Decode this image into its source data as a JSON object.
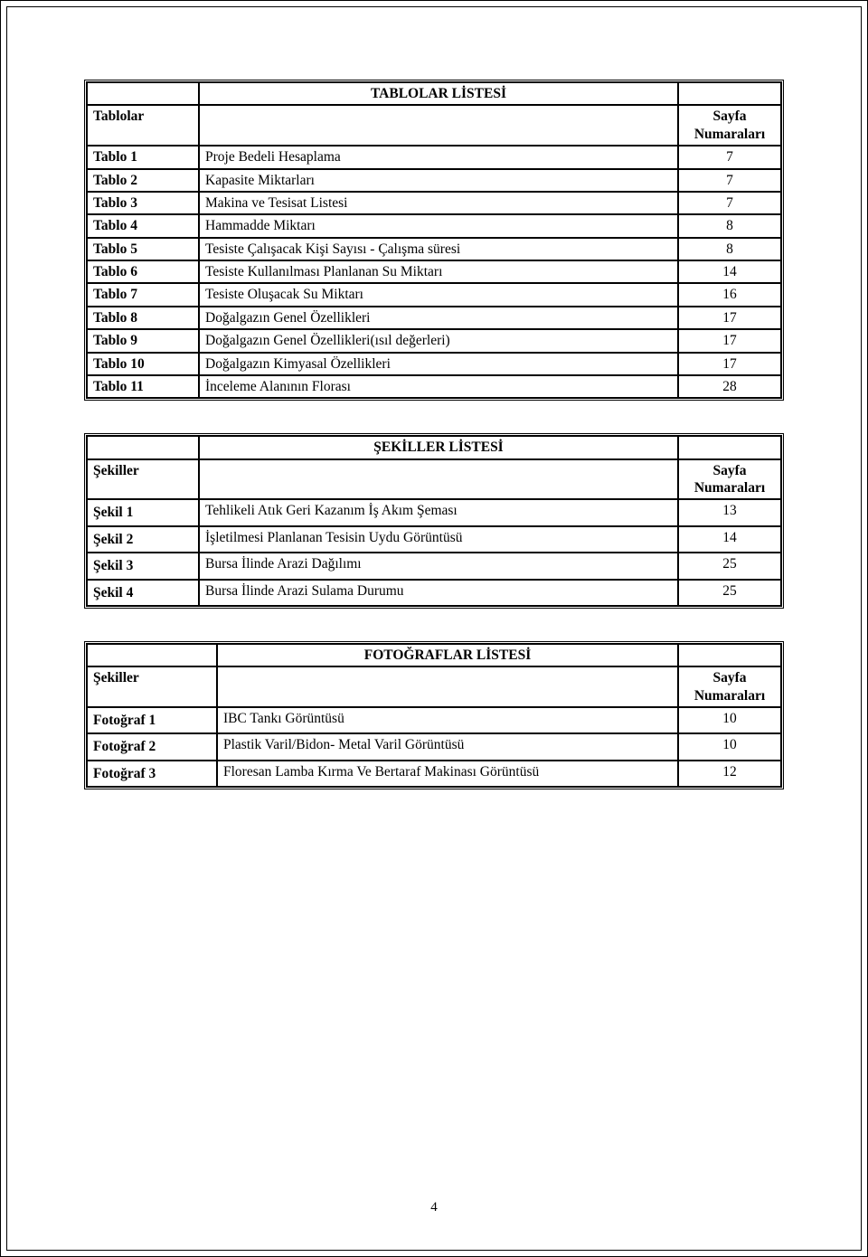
{
  "pageNumber": "4",
  "tables": {
    "tablolar": {
      "title": "TABLOLAR LİSTESİ",
      "headerCol1": "Tablolar",
      "headerCol3": "Sayfa Numaraları",
      "rows": [
        {
          "label": "Tablo 1",
          "desc": "Proje Bedeli Hesaplama",
          "page": "7"
        },
        {
          "label": "Tablo 2",
          "desc": "Kapasite Miktarları",
          "page": "7"
        },
        {
          "label": "Tablo 3",
          "desc": "Makina ve Tesisat Listesi",
          "page": "7"
        },
        {
          "label": "Tablo 4",
          "desc": "Hammadde Miktarı",
          "page": "8"
        },
        {
          "label": "Tablo 5",
          "desc": "Tesiste Çalışacak Kişi Sayısı - Çalışma süresi",
          "page": "8"
        },
        {
          "label": "Tablo 6",
          "desc": "Tesiste Kullanılması Planlanan Su Miktarı",
          "page": "14"
        },
        {
          "label": "Tablo 7",
          "desc": "Tesiste Oluşacak Su Miktarı",
          "page": "16"
        },
        {
          "label": "Tablo 8",
          "desc": "Doğalgazın Genel Özellikleri",
          "page": "17"
        },
        {
          "label": "Tablo 9",
          "desc": "Doğalgazın Genel Özellikleri(ısıl değerleri)",
          "page": "17"
        },
        {
          "label": "Tablo 10",
          "desc": "Doğalgazın Kimyasal Özellikleri",
          "page": "17"
        },
        {
          "label": "Tablo 11",
          "desc": "İnceleme Alanının Florası",
          "page": "28"
        }
      ]
    },
    "sekiller": {
      "title": "ŞEKİLLER LİSTESİ",
      "headerCol1": "Şekiller",
      "headerCol3": "Sayfa Numaraları",
      "rows": [
        {
          "label": "Şekil 1",
          "desc": "Tehlikeli Atık Geri Kazanım İş Akım Şeması",
          "page": "13"
        },
        {
          "label": "Şekil 2",
          "desc": "İşletilmesi Planlanan Tesisin Uydu Görüntüsü",
          "page": "14"
        },
        {
          "label": "Şekil 3",
          "desc": "Bursa İlinde Arazi Dağılımı",
          "page": "25"
        },
        {
          "label": "Şekil 4",
          "desc": "Bursa İlinde Arazi Sulama Durumu",
          "page": "25"
        }
      ]
    },
    "fotograflar": {
      "title": "FOTOĞRAFLAR LİSTESİ",
      "headerCol1": "Şekiller",
      "headerCol3": "Sayfa Numaraları",
      "rows": [
        {
          "label": "Fotoğraf 1",
          "desc": "IBC Tankı Görüntüsü",
          "page": "10"
        },
        {
          "label": "Fotoğraf 2",
          "desc": "Plastik Varil/Bidon- Metal Varil Görüntüsü",
          "page": "10"
        },
        {
          "label": "Fotoğraf 3",
          "desc": "Floresan Lamba Kırma Ve Bertaraf Makinası Görüntüsü",
          "page": "12"
        }
      ]
    }
  }
}
